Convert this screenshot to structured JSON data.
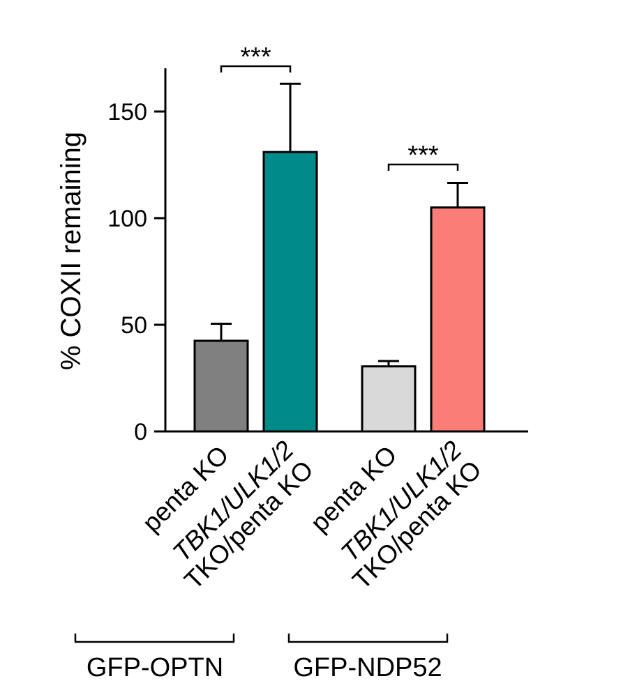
{
  "chart_data": {
    "type": "bar",
    "ylabel": "% COXII remaining",
    "ylim": [
      0,
      170
    ],
    "yticks": [
      0,
      50,
      100,
      150
    ],
    "categories": [
      {
        "lines": [
          "penta KO"
        ],
        "italic_parts": []
      },
      {
        "lines": [
          "TBK1/ULK1/2",
          "TKO/penta KO"
        ],
        "italic_parts": [
          "TBK1/ULK1/2"
        ]
      },
      {
        "lines": [
          "penta KO"
        ],
        "italic_parts": []
      },
      {
        "lines": [
          "TBK1/ULK1/2",
          "TKO/penta KO"
        ],
        "italic_parts": [
          "TBK1/ULK1/2"
        ]
      }
    ],
    "values": [
      42.5,
      131,
      30.5,
      105
    ],
    "errors": [
      8,
      32,
      2.5,
      11.5
    ],
    "colors": [
      "#808080",
      "#008b8b",
      "#d9d9d9",
      "#fa7d78"
    ],
    "groups": [
      {
        "label": "GFP-OPTN",
        "bars": [
          0,
          1
        ]
      },
      {
        "label": "GFP-NDP52",
        "bars": [
          2,
          3
        ]
      }
    ],
    "significance": [
      {
        "bars": [
          0,
          1
        ],
        "label": "***"
      },
      {
        "bars": [
          2,
          3
        ],
        "label": "***"
      }
    ]
  }
}
